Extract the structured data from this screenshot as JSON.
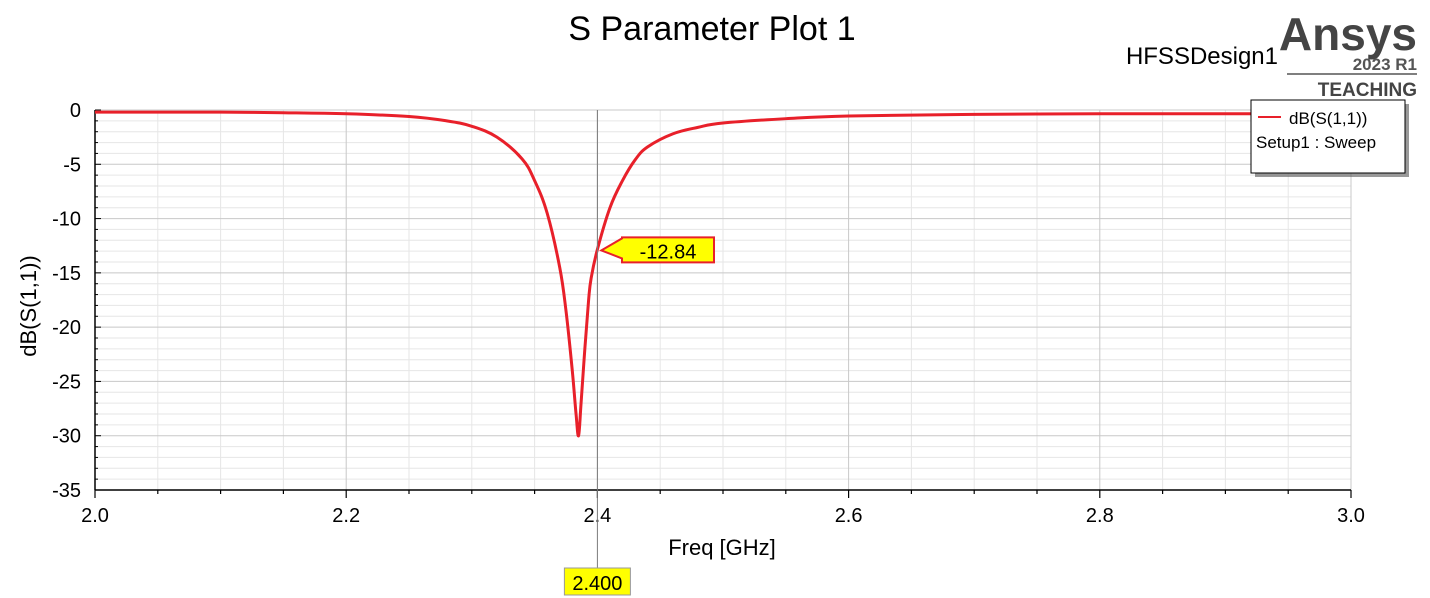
{
  "header": {
    "design_name": "HFSSDesign1",
    "brand": {
      "name": "Ansys",
      "version": "2023 R1",
      "edition": "TEACHING"
    }
  },
  "colors": {
    "trace": "#e8202a",
    "marker_fill": "#ffff00",
    "marker_border": "#e8202a",
    "grid_major": "#c8c8c8",
    "grid_minor": "#e6e6e6"
  },
  "chart_data": {
    "type": "line",
    "title": "S Parameter Plot 1",
    "xlabel": "Freq [GHz]",
    "ylabel": "dB(S(1,1))",
    "xlim": [
      2.0,
      3.0
    ],
    "ylim": [
      -35,
      0
    ],
    "x_ticks": [
      2.0,
      2.2,
      2.4,
      2.6,
      2.8,
      3.0
    ],
    "x_tick_labels": [
      "2.0",
      "2.2",
      "2.4",
      "2.6",
      "2.8",
      "3.0"
    ],
    "y_ticks": [
      0,
      -5,
      -10,
      -15,
      -20,
      -25,
      -30,
      -35
    ],
    "y_tick_labels": [
      "0",
      "-5",
      "-10",
      "-15",
      "-20",
      "-25",
      "-30",
      "-35"
    ],
    "grid": true,
    "legend": {
      "placement": "top-right",
      "entries": [
        {
          "line1": "dB(S(1,1))",
          "line2": "Setup1 : Sweep"
        }
      ]
    },
    "series": [
      {
        "name": "dB(S(1,1))",
        "color": "#e8202a",
        "x": [
          2.0,
          2.05,
          2.1,
          2.15,
          2.2,
          2.25,
          2.28,
          2.3,
          2.32,
          2.34,
          2.35,
          2.36,
          2.37,
          2.375,
          2.38,
          2.383,
          2.385,
          2.387,
          2.39,
          2.393,
          2.395,
          2.4,
          2.41,
          2.42,
          2.43,
          2.44,
          2.46,
          2.48,
          2.5,
          2.55,
          2.6,
          2.7,
          2.8,
          2.9,
          3.0
        ],
        "y": [
          -0.2,
          -0.2,
          -0.2,
          -0.25,
          -0.35,
          -0.6,
          -1.0,
          -1.5,
          -2.5,
          -4.5,
          -6.5,
          -9.5,
          -14.5,
          -18.5,
          -24.0,
          -28.0,
          -30.0,
          -27.0,
          -22.0,
          -17.5,
          -15.5,
          -12.84,
          -9.0,
          -6.5,
          -4.6,
          -3.4,
          -2.2,
          -1.6,
          -1.2,
          -0.8,
          -0.55,
          -0.4,
          -0.35,
          -0.35,
          -0.35
        ]
      }
    ],
    "marker": {
      "x": 2.4,
      "y": -12.84,
      "value_label": "-12.84",
      "x_label": "2.400"
    }
  }
}
